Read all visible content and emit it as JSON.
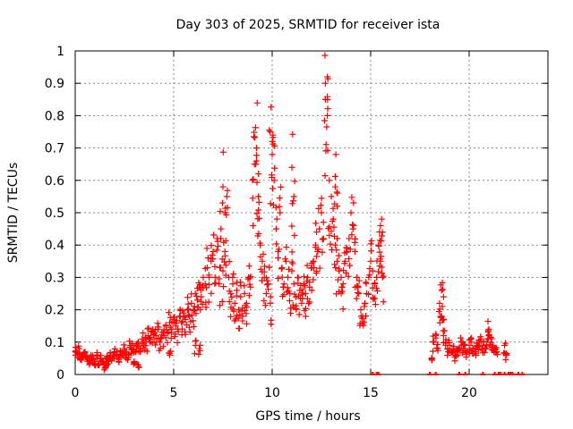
{
  "chart_data": {
    "type": "scatter",
    "title": "Day 303 of 2025, SRMTID for receiver ista",
    "xlabel": "GPS time / hours",
    "ylabel": "SRMTID / TECUs",
    "xlim": [
      0,
      24
    ],
    "ylim": [
      0,
      1
    ],
    "xticks": [
      0,
      5,
      10,
      15,
      20
    ],
    "yticks": [
      0,
      0.1,
      0.2,
      0.3,
      0.4,
      0.5,
      0.6,
      0.7,
      0.8,
      0.9,
      1
    ],
    "xtick_labels": [
      "0",
      "5",
      "10",
      "15",
      "20"
    ],
    "ytick_labels": [
      "0",
      "0.1",
      "0.2",
      "0.3",
      "0.4",
      "0.5",
      "0.6",
      "0.7",
      "0.8",
      "0.9",
      "1"
    ],
    "grid": true,
    "marker": "+",
    "color": "#ff0000",
    "series": [
      {
        "name": "SRMTID",
        "x": [
          0.0,
          0.1,
          0.2,
          0.3,
          0.4,
          0.5,
          0.6,
          0.7,
          0.8,
          0.9,
          1.0,
          1.1,
          1.2,
          1.3,
          1.4,
          1.5,
          1.6,
          1.7,
          1.8,
          1.9,
          2.0,
          2.1,
          2.2,
          2.3,
          2.4,
          2.5,
          2.6,
          2.7,
          2.8,
          2.9,
          3.0,
          3.1,
          3.2,
          3.3,
          3.4,
          3.5,
          3.6,
          3.7,
          3.8,
          3.9,
          4.0,
          4.1,
          4.2,
          4.3,
          4.4,
          4.5,
          4.6,
          4.7,
          4.8,
          4.9,
          5.0,
          5.1,
          5.2,
          5.3,
          5.4,
          5.5,
          5.6,
          5.7,
          5.8,
          5.9,
          6.0,
          6.1,
          6.2,
          6.3,
          6.4,
          6.5,
          6.6,
          6.7,
          6.8,
          6.9,
          7.0,
          7.1,
          7.2,
          7.3,
          7.4,
          7.5,
          7.6,
          7.7,
          7.8,
          7.9,
          8.0,
          8.1,
          8.2,
          8.3,
          8.4,
          8.5,
          8.6,
          8.7,
          8.8,
          8.9,
          9.0,
          9.1,
          9.2,
          9.3,
          9.4,
          9.5,
          9.6,
          9.7,
          9.8,
          9.9,
          10.0,
          10.1,
          10.2,
          10.3,
          10.4,
          10.5,
          10.6,
          10.7,
          10.8,
          10.9,
          11.0,
          11.1,
          11.2,
          11.3,
          11.4,
          11.5,
          11.6,
          11.7,
          11.8,
          11.9,
          12.0,
          12.1,
          12.2,
          12.3,
          12.4,
          12.5,
          12.6,
          12.7,
          12.8,
          12.9,
          13.0,
          13.1,
          13.2,
          13.3,
          13.4,
          13.5,
          13.6,
          13.7,
          13.8,
          13.9,
          14.0,
          14.1,
          14.2,
          14.3,
          14.4,
          14.5,
          14.6,
          14.7,
          14.8,
          14.9,
          15.0,
          15.1,
          15.2,
          15.3,
          15.4,
          15.5,
          15.6,
          18.1,
          18.2,
          18.3,
          18.4,
          18.5,
          18.6,
          18.7,
          18.8,
          18.9,
          19.0,
          19.1,
          19.2,
          19.3,
          19.4,
          19.5,
          19.6,
          19.7,
          19.8,
          19.9,
          20.0,
          20.1,
          20.2,
          20.3,
          20.4,
          20.5,
          20.6,
          20.7,
          20.8,
          20.9,
          21.0,
          21.1,
          21.2,
          21.3,
          21.4,
          21.8,
          21.9,
          9.9,
          10.0,
          12.7,
          12.8,
          9.2,
          9.3,
          7.5,
          7.6,
          13.2,
          13.3,
          11.0,
          11.1,
          15.5,
          15.6,
          18.6,
          18.7,
          21.0,
          1.5,
          1.6,
          3.0,
          3.2,
          4.8,
          6.1,
          6.3
        ],
        "y": [
          0.07,
          0.06,
          0.08,
          0.05,
          0.06,
          0.07,
          0.05,
          0.04,
          0.06,
          0.05,
          0.04,
          0.06,
          0.03,
          0.05,
          0.04,
          0.03,
          0.05,
          0.04,
          0.06,
          0.05,
          0.07,
          0.06,
          0.05,
          0.07,
          0.06,
          0.08,
          0.07,
          0.06,
          0.09,
          0.08,
          0.07,
          0.09,
          0.1,
          0.08,
          0.11,
          0.09,
          0.1,
          0.12,
          0.1,
          0.13,
          0.11,
          0.12,
          0.14,
          0.1,
          0.13,
          0.12,
          0.15,
          0.13,
          0.16,
          0.14,
          0.17,
          0.15,
          0.14,
          0.18,
          0.16,
          0.19,
          0.17,
          0.2,
          0.18,
          0.22,
          0.2,
          0.25,
          0.23,
          0.27,
          0.24,
          0.3,
          0.28,
          0.33,
          0.3,
          0.35,
          0.38,
          0.3,
          0.42,
          0.28,
          0.45,
          0.32,
          0.38,
          0.55,
          0.3,
          0.25,
          0.28,
          0.22,
          0.26,
          0.2,
          0.24,
          0.18,
          0.25,
          0.22,
          0.3,
          0.27,
          0.6,
          0.65,
          0.7,
          0.55,
          0.4,
          0.35,
          0.3,
          0.25,
          0.28,
          0.22,
          0.72,
          0.6,
          0.45,
          0.38,
          0.5,
          0.33,
          0.28,
          0.35,
          0.3,
          0.25,
          0.32,
          0.28,
          0.24,
          0.3,
          0.26,
          0.22,
          0.28,
          0.25,
          0.3,
          0.27,
          0.33,
          0.35,
          0.4,
          0.38,
          0.45,
          0.5,
          0.42,
          0.9,
          0.8,
          0.6,
          0.55,
          0.48,
          0.4,
          0.35,
          0.32,
          0.3,
          0.28,
          0.35,
          0.38,
          0.42,
          0.5,
          0.45,
          0.38,
          0.3,
          0.25,
          0.2,
          0.18,
          0.22,
          0.25,
          0.3,
          0.35,
          0.32,
          0.28,
          0.3,
          0.4,
          0.35,
          0.3,
          0.05,
          0.1,
          0.12,
          0.08,
          0.22,
          0.18,
          0.12,
          0.1,
          0.08,
          0.09,
          0.07,
          0.08,
          0.06,
          0.07,
          0.08,
          0.1,
          0.09,
          0.08,
          0.07,
          0.09,
          0.1,
          0.08,
          0.07,
          0.09,
          0.1,
          0.11,
          0.09,
          0.08,
          0.1,
          0.12,
          0.1,
          0.09,
          0.08,
          0.07,
          0.09,
          0.06,
          0.75,
          0.68,
          0.85,
          0.92,
          0.66,
          0.62,
          0.58,
          0.5,
          0.58,
          0.52,
          0.64,
          0.55,
          0.46,
          0.44,
          0.26,
          0.24,
          0.14,
          0.02,
          0.03,
          0.04,
          0.03,
          0.06,
          0.09,
          0.08
        ],
        "zeros_x": [
          15.1,
          15.3,
          15.4,
          18.0,
          18.3,
          19.5,
          19.8,
          20.7,
          21.3,
          21.5,
          21.6,
          21.8,
          22.0,
          22.1,
          22.2,
          22.5,
          22.7
        ]
      }
    ]
  }
}
